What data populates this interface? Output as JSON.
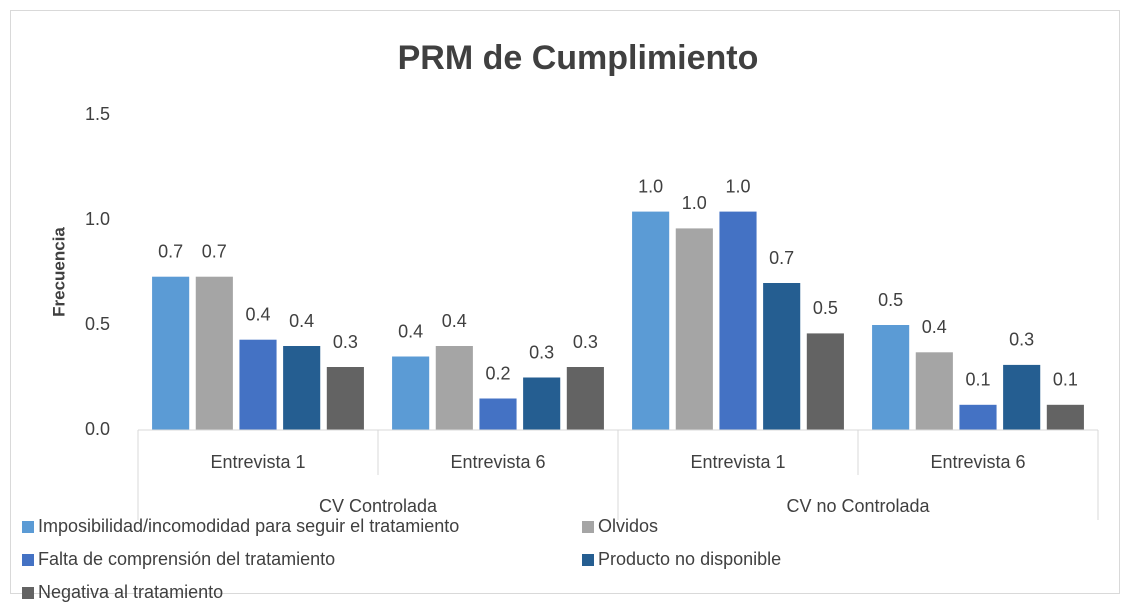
{
  "chart_data": {
    "type": "bar",
    "title": "PRM de Cumplimiento",
    "y_label": "Frecuencia",
    "categories": [
      "Entrevista 1",
      "Entrevista 6",
      "Entrevista 1",
      "Entrevista 6"
    ],
    "category_groups": [
      {
        "name": "CV Controlada",
        "span": 2
      },
      {
        "name": "CV no Controlada",
        "span": 2
      }
    ],
    "series": [
      {
        "name": "Imposibilidad/incomodidad para seguir el tratamiento",
        "color": "#5b9bd5",
        "values": [
          0.73,
          0.35,
          1.04,
          0.5
        ],
        "value_labels": [
          "0.7",
          "0.4",
          "1.0",
          "0.5"
        ]
      },
      {
        "name": "Olvidos",
        "color": "#a5a5a5",
        "values": [
          0.73,
          0.4,
          0.96,
          0.37
        ],
        "value_labels": [
          "0.7",
          "0.4",
          "1.0",
          "0.4"
        ]
      },
      {
        "name": "Falta de comprensión del tratamiento",
        "color": "#4472c4",
        "values": [
          0.43,
          0.15,
          1.04,
          0.12
        ],
        "value_labels": [
          "0.4",
          "0.2",
          "1.0",
          "0.1"
        ]
      },
      {
        "name": "Producto no disponible",
        "color": "#255e91",
        "values": [
          0.4,
          0.25,
          0.7,
          0.31
        ],
        "value_labels": [
          "0.4",
          "0.3",
          "0.7",
          "0.3"
        ]
      },
      {
        "name": "Negativa al tratamiento",
        "color": "#636363",
        "values": [
          0.3,
          0.3,
          0.46,
          0.12
        ],
        "value_labels": [
          "0.3",
          "0.3",
          "0.5",
          "0.1"
        ]
      }
    ],
    "ylim": [
      0,
      1.5
    ],
    "yticks": [
      {
        "value": 0,
        "label": "0.0"
      },
      0.5,
      {
        "value": 1,
        "label": "1.0"
      },
      {
        "value": 1.5,
        "label": "1.5"
      }
    ],
    "grid": false,
    "legend": "bottom"
  }
}
